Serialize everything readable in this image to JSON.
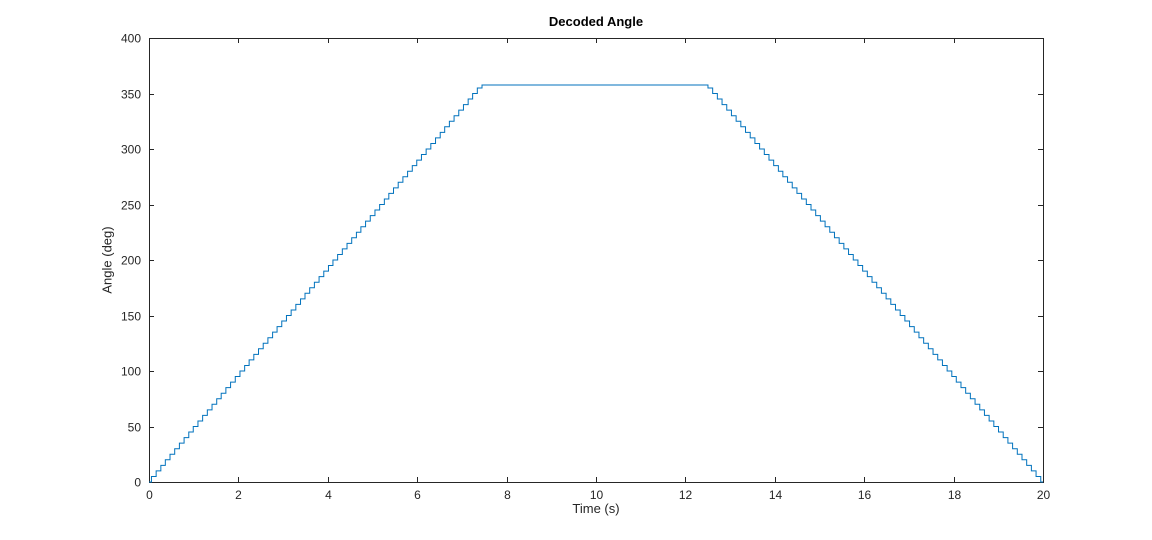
{
  "figure": {
    "title": "Decoded Angle",
    "xlabel": "Time (s)",
    "ylabel": "Angle (deg)"
  },
  "chart_data": {
    "type": "line",
    "style": "staircase (quantized encoder angle readout), trapezoid ramp-hold-ramp profile",
    "title": "Decoded Angle",
    "xlabel": "Time (s)",
    "ylabel": "Angle (deg)",
    "xlim": [
      0,
      20
    ],
    "ylim": [
      0,
      400
    ],
    "xticks": [
      0,
      2,
      4,
      6,
      8,
      10,
      12,
      14,
      16,
      18,
      20
    ],
    "yticks": [
      0,
      50,
      100,
      150,
      200,
      250,
      300,
      350,
      400
    ],
    "grid": false,
    "box": true,
    "legend": null,
    "tick_direction": "in",
    "line_color": "#0072BD",
    "axis_color": "#262626",
    "series": [
      {
        "name": "decoded angle",
        "key_points": [
          [
            0,
            0
          ],
          [
            7.45,
            357.6
          ],
          [
            12.5,
            357.6
          ],
          [
            20,
            0
          ]
        ],
        "quantization_step_deg": 5,
        "rise_rate_deg_per_s": 48,
        "fall_rate_deg_per_s": -47.7,
        "plateau_value_deg": 357.6,
        "plateau_interval_s": [
          7.45,
          12.5
        ]
      }
    ]
  }
}
